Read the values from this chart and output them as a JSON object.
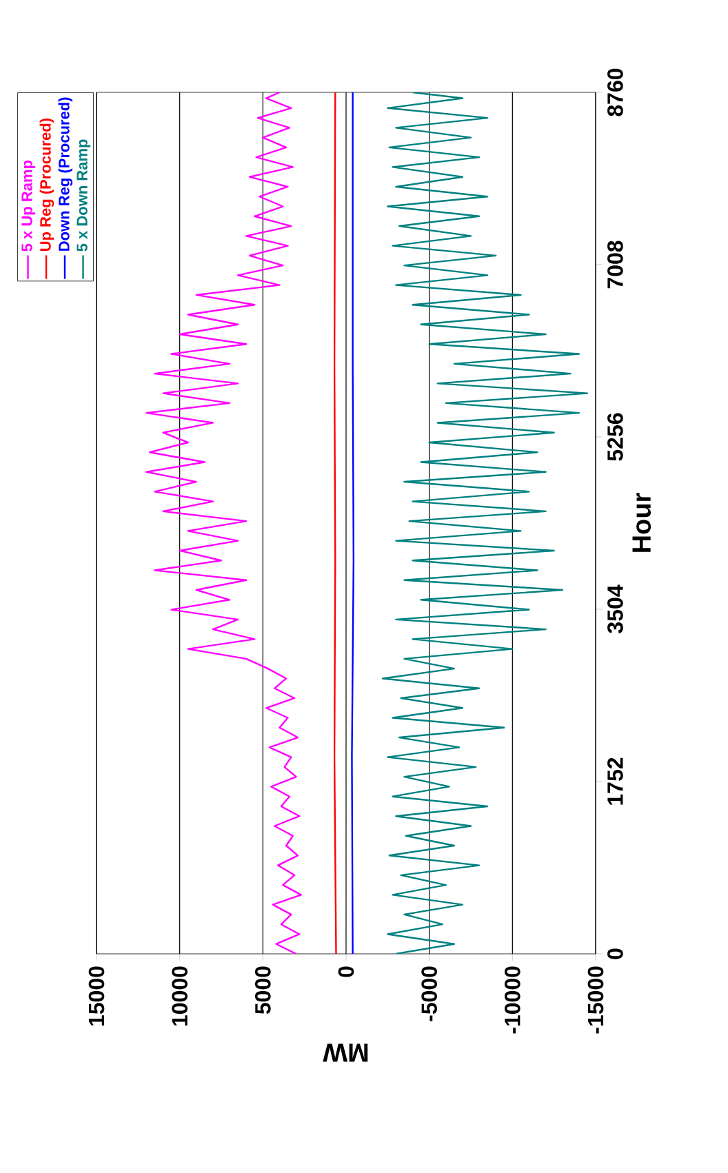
{
  "chart_data": {
    "type": "line",
    "xlabel": "MW",
    "ylabel": "Hour",
    "xlim": [
      15000,
      -15000
    ],
    "ylim": [
      0,
      8760
    ],
    "xticks": [
      15000,
      10000,
      5000,
      0,
      -5000,
      -10000,
      -15000
    ],
    "yticks": [
      0,
      1752,
      3504,
      5256,
      7008,
      8760
    ],
    "grid": "x",
    "legend": "top left",
    "series": [
      {
        "name": "5 x Up Ramp",
        "color": "#ff00ff",
        "values": [
          0,
          100,
          200,
          300,
          400,
          500,
          600,
          700,
          800,
          900,
          1000,
          1100,
          1200,
          1300,
          1400,
          1500,
          1600,
          1700,
          1800,
          1900,
          2000,
          2100,
          2200,
          2300,
          2400,
          2500,
          2600,
          2700,
          2800,
          2900,
          3000,
          3100,
          3200,
          3300,
          3400,
          3500,
          3600,
          3700,
          3800,
          3900,
          4000,
          4100,
          4200,
          4300,
          4400,
          4500,
          4600,
          4700,
          4800,
          4900,
          5000,
          5100,
          5200,
          5300,
          5400,
          5500,
          5600,
          5700,
          5800,
          5900,
          6000,
          6100,
          6200,
          6300,
          6400,
          6500,
          6600,
          6700,
          6800,
          6900,
          7000,
          7100,
          7200,
          7300,
          7400,
          7500,
          7600,
          7700,
          7800,
          7900,
          8000,
          8100,
          8200,
          8300,
          8400,
          8500,
          8600,
          8700,
          8760
        ],
        "x": [
          3000,
          4200,
          2800,
          3900,
          3300,
          4400,
          2700,
          3800,
          3100,
          4100,
          2900,
          3600,
          3200,
          4300,
          2800,
          3900,
          3400,
          4500,
          3000,
          3700,
          3300,
          4600,
          2900,
          4000,
          3500,
          4800,
          3100,
          4300,
          3600,
          4700,
          6000,
          9500,
          5500,
          8000,
          6500,
          10500,
          7000,
          9000,
          6000,
          11500,
          7500,
          10000,
          6500,
          9500,
          6000,
          11000,
          8000,
          11500,
          9000,
          12000,
          8500,
          11800,
          9500,
          11000,
          8000,
          12000,
          7000,
          11000,
          6500,
          11500,
          7000,
          10500,
          6000,
          10000,
          6500,
          9500,
          5500,
          9000,
          4000,
          6500,
          3800,
          5800,
          3500,
          6000,
          3300,
          5500,
          3800,
          5200,
          3500,
          5800,
          3200,
          5400,
          3600,
          5000,
          3400,
          5300,
          3300,
          4800,
          4000
        ]
      },
      {
        "name": "Up Reg (Procured)",
        "color": "#ff0000",
        "values": [
          0,
          2000,
          4000,
          6000,
          8760
        ],
        "x": [
          600,
          700,
          650,
          700,
          650
        ]
      },
      {
        "name": "Down Reg (Procured)",
        "color": "#0000ff",
        "values": [
          0,
          2000,
          4000,
          6000,
          8760
        ],
        "x": [
          -400,
          -350,
          -450,
          -400,
          -400
        ]
      },
      {
        "name": "5 x Down Ramp",
        "color": "#008080",
        "values": [
          0,
          100,
          200,
          300,
          400,
          500,
          600,
          700,
          800,
          900,
          1000,
          1100,
          1200,
          1300,
          1400,
          1500,
          1600,
          1700,
          1800,
          1900,
          2000,
          2100,
          2200,
          2300,
          2400,
          2500,
          2600,
          2700,
          2800,
          2900,
          3000,
          3100,
          3200,
          3300,
          3400,
          3500,
          3600,
          3700,
          3800,
          3900,
          4000,
          4100,
          4200,
          4300,
          4400,
          4500,
          4600,
          4700,
          4800,
          4900,
          5000,
          5100,
          5200,
          5300,
          5400,
          5500,
          5600,
          5700,
          5800,
          5900,
          6000,
          6100,
          6200,
          6300,
          6400,
          6500,
          6600,
          6700,
          6800,
          6900,
          7000,
          7100,
          7200,
          7300,
          7400,
          7500,
          7600,
          7700,
          7800,
          7900,
          8000,
          8100,
          8200,
          8300,
          8400,
          8500,
          8600,
          8700,
          8760
        ],
        "x": [
          -3000,
          -6500,
          -2500,
          -5800,
          -3500,
          -7000,
          -2800,
          -6000,
          -3300,
          -8000,
          -2600,
          -6500,
          -3600,
          -7500,
          -3000,
          -8500,
          -2800,
          -6200,
          -3500,
          -7800,
          -2500,
          -6800,
          -3200,
          -9500,
          -2800,
          -7000,
          -3300,
          -8000,
          -2200,
          -6500,
          -3500,
          -10000,
          -4000,
          -12000,
          -3000,
          -11000,
          -4500,
          -13000,
          -3500,
          -11500,
          -4000,
          -12500,
          -3000,
          -10500,
          -3800,
          -12000,
          -4000,
          -11000,
          -3500,
          -12000,
          -4500,
          -11500,
          -5000,
          -12500,
          -5500,
          -14000,
          -6000,
          -14500,
          -5500,
          -13500,
          -6500,
          -14000,
          -5000,
          -12000,
          -4500,
          -11000,
          -4000,
          -10500,
          -3000,
          -8500,
          -3500,
          -9000,
          -2800,
          -7500,
          -3200,
          -8000,
          -2500,
          -8500,
          -3000,
          -7000,
          -2800,
          -8000,
          -2600,
          -7500,
          -3000,
          -8500,
          -2500,
          -7000,
          -4000
        ]
      }
    ]
  }
}
